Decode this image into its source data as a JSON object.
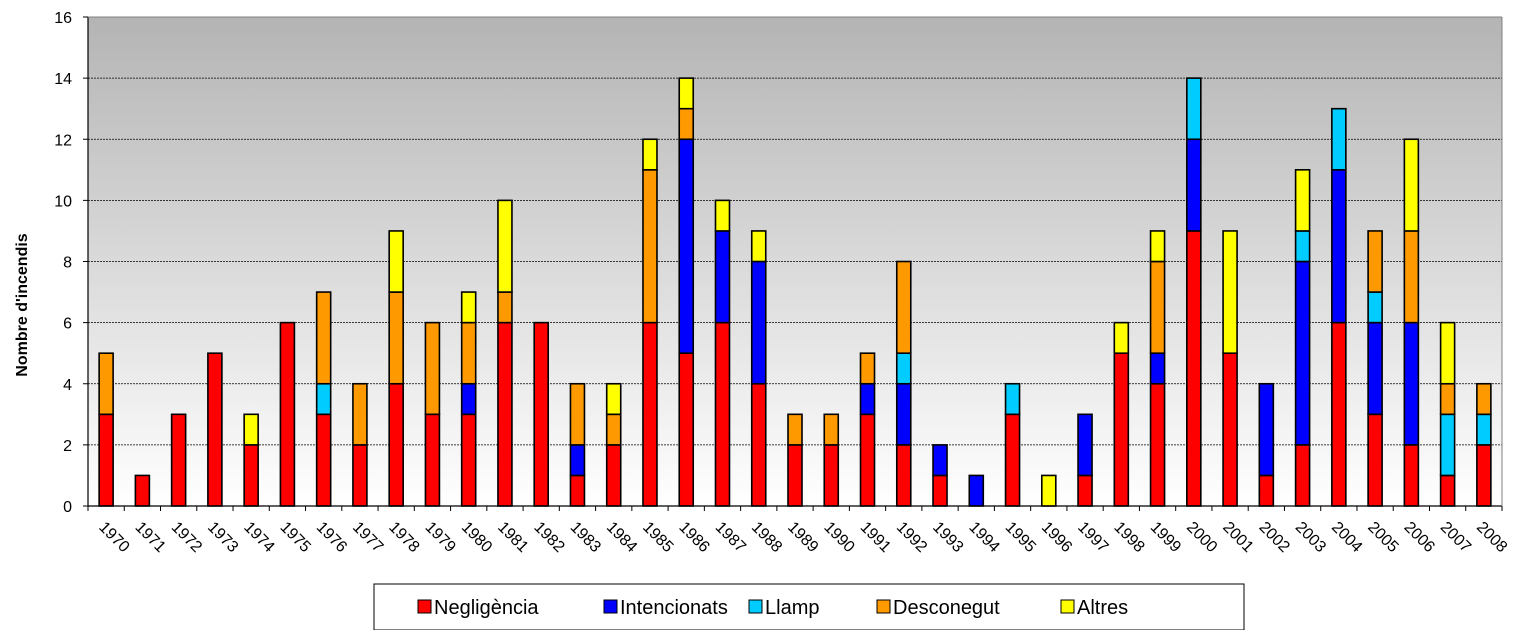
{
  "chart_data": {
    "type": "bar",
    "stacked": true,
    "title": "",
    "xlabel": "",
    "ylabel": "Nombre d'incendis",
    "ylim": [
      0,
      16
    ],
    "yticks": [
      0,
      2,
      4,
      6,
      8,
      10,
      12,
      14,
      16
    ],
    "grid": true,
    "legend_position": "bottom",
    "categories": [
      "1970",
      "1971",
      "1972",
      "1973",
      "1974",
      "1975",
      "1976",
      "1977",
      "1978",
      "1979",
      "1980",
      "1981",
      "1982",
      "1983",
      "1984",
      "1985",
      "1986",
      "1987",
      "1988",
      "1989",
      "1990",
      "1991",
      "1992",
      "1993",
      "1994",
      "1995",
      "1996",
      "1997",
      "1998",
      "1999",
      "2000",
      "2001",
      "2002",
      "2003",
      "2004",
      "2005",
      "2006",
      "2007",
      "2008"
    ],
    "series": [
      {
        "name": "Negligència",
        "color": "#ff0000",
        "values": [
          3,
          1,
          3,
          5,
          2,
          6,
          3,
          2,
          4,
          3,
          3,
          6,
          6,
          1,
          2,
          6,
          5,
          6,
          4,
          2,
          2,
          3,
          2,
          1,
          0,
          3,
          0,
          1,
          5,
          4,
          9,
          5,
          1,
          2,
          6,
          3,
          2,
          1,
          2
        ]
      },
      {
        "name": "Intencionats",
        "color": "#0000ff",
        "values": [
          0,
          0,
          0,
          0,
          0,
          0,
          0,
          0,
          0,
          0,
          1,
          0,
          0,
          1,
          0,
          0,
          7,
          3,
          4,
          0,
          0,
          1,
          2,
          1,
          1,
          0,
          0,
          2,
          0,
          1,
          3,
          0,
          3,
          6,
          5,
          3,
          4,
          0,
          0
        ]
      },
      {
        "name": "Llamp",
        "color": "#00ccff",
        "values": [
          0,
          0,
          0,
          0,
          0,
          0,
          1,
          0,
          0,
          0,
          0,
          0,
          0,
          0,
          0,
          0,
          0,
          0,
          0,
          0,
          0,
          0,
          1,
          0,
          0,
          1,
          0,
          0,
          0,
          0,
          2,
          0,
          0,
          1,
          2,
          1,
          0,
          2,
          1
        ]
      },
      {
        "name": "Desconegut",
        "color": "#ff9900",
        "values": [
          2,
          0,
          0,
          0,
          0,
          0,
          3,
          2,
          3,
          3,
          2,
          1,
          0,
          2,
          1,
          5,
          1,
          0,
          0,
          1,
          1,
          1,
          3,
          0,
          0,
          0,
          0,
          0,
          0,
          3,
          0,
          0,
          0,
          0,
          0,
          2,
          3,
          1,
          1
        ]
      },
      {
        "name": "Altres",
        "color": "#ffff00",
        "values": [
          0,
          0,
          0,
          0,
          1,
          0,
          0,
          0,
          2,
          0,
          1,
          3,
          0,
          0,
          1,
          1,
          1,
          1,
          1,
          0,
          0,
          0,
          0,
          0,
          0,
          0,
          1,
          0,
          1,
          1,
          0,
          4,
          0,
          2,
          0,
          0,
          3,
          2,
          0
        ]
      }
    ]
  }
}
